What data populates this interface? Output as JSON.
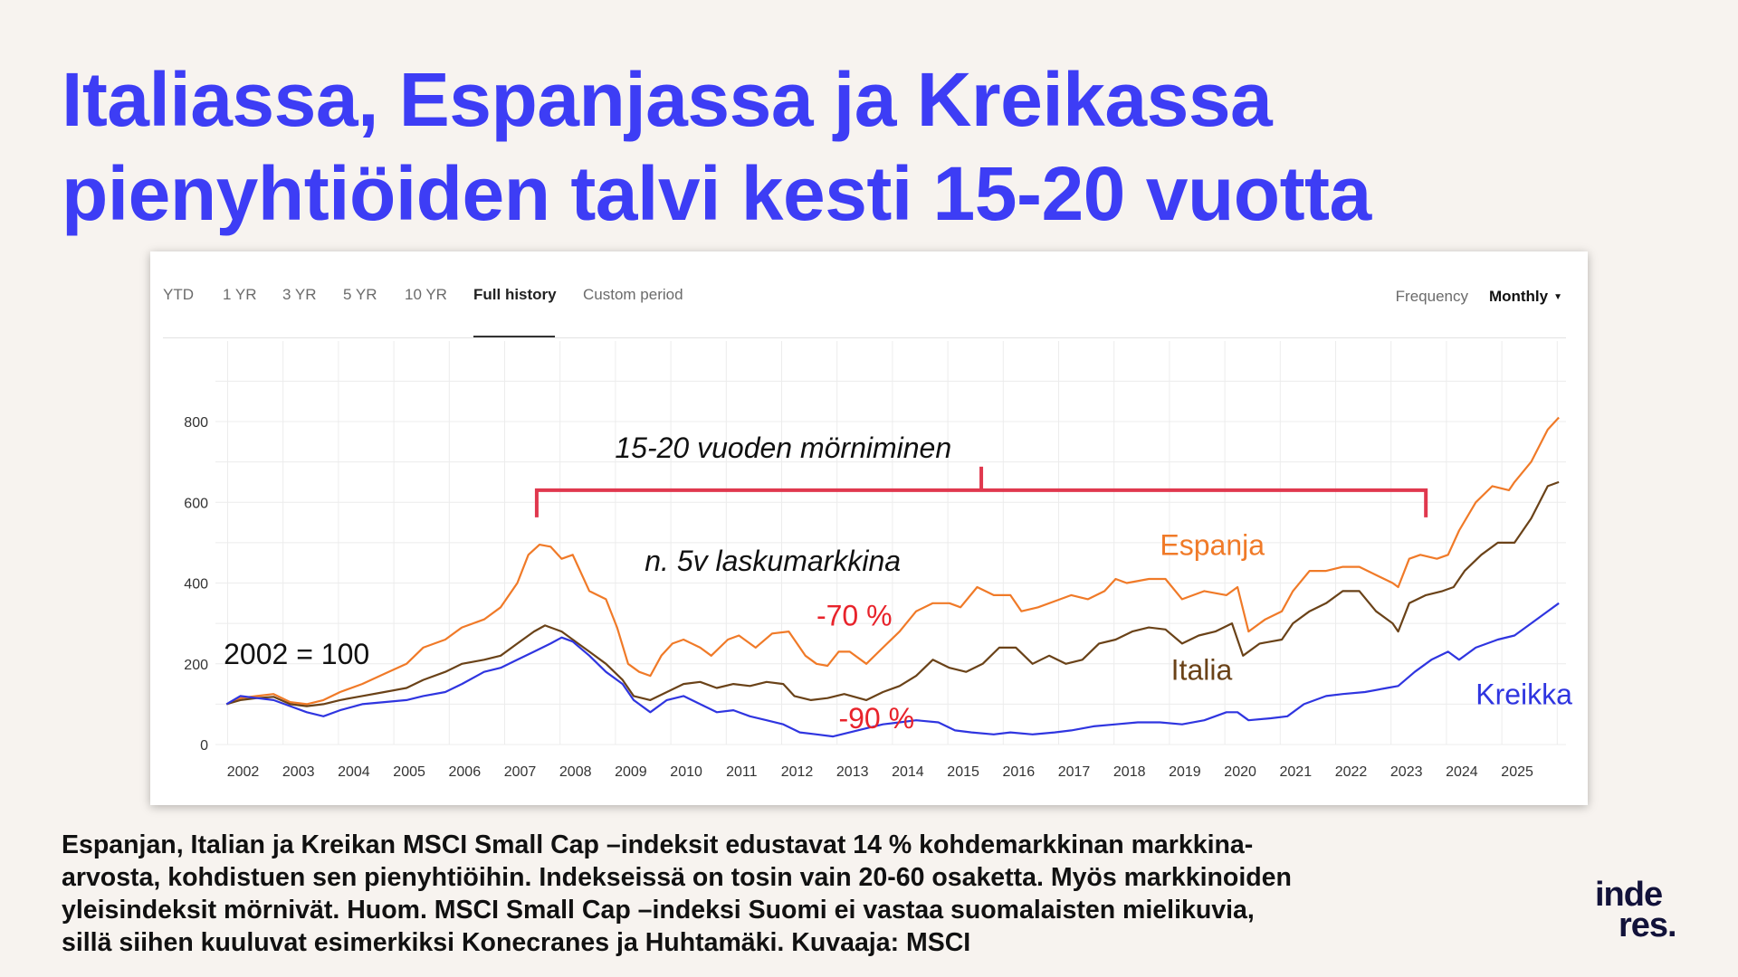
{
  "title": {
    "line1": "Italiassa, Espanjassa ja Kreikassa",
    "line2": "pienyhtiöiden talvi kesti 15-20 vuotta"
  },
  "toolbar": {
    "tabs": [
      {
        "label": "YTD",
        "active": false
      },
      {
        "label": "1 YR",
        "active": false
      },
      {
        "label": "3 YR",
        "active": false
      },
      {
        "label": "5 YR",
        "active": false
      },
      {
        "label": "10 YR",
        "active": false
      },
      {
        "label": "Full history",
        "active": true
      },
      {
        "label": "Custom period",
        "active": false
      }
    ],
    "frequency_label": "Frequency",
    "frequency_value": "Monthly"
  },
  "caption": {
    "line1": "Espanjan, Italian ja Kreikan MSCI Small Cap –indeksit edustavat 14 % kohdemarkkinan markkina-",
    "line2": "arvosta, kohdistuen sen pienyhtiöihin. Indekseissä on tosin vain 20-60 osaketta. Myös markkinoiden",
    "line3": "yleisindeksit mörnivät. Huom. MSCI Small Cap –indeksi Suomi ei vastaa suomalaisten mielikuvia,",
    "line4": "sillä siihen kuuluvat esimerkiksi Konecranes ja Huhtamäki. Kuvaaja: MSCI"
  },
  "logo": {
    "line1": "inde",
    "line2": "res."
  },
  "colors": {
    "headline": "#3d3df5",
    "espanja": "#f07a28",
    "italia": "#6a4218",
    "kreikka": "#2f35e0",
    "bracket": "#e0384e",
    "drawdown_text": "#e8232b"
  },
  "chart_data": {
    "type": "line",
    "x_ticks": [
      "2002",
      "2003",
      "2004",
      "2005",
      "2006",
      "2007",
      "2008",
      "2009",
      "2010",
      "2011",
      "2012",
      "2013",
      "2014",
      "2015",
      "2016",
      "2017",
      "2018",
      "2019",
      "2020",
      "2021",
      "2022",
      "2023",
      "2024",
      "2025"
    ],
    "ylim": [
      0,
      900
    ],
    "y_ticks": [
      0,
      200,
      400,
      600,
      800
    ],
    "grid": true,
    "series": [
      {
        "name": "Espanja",
        "color": "#f07a28",
        "points": [
          [
            2001.75,
            100
          ],
          [
            2002.0,
            115
          ],
          [
            2002.3,
            120
          ],
          [
            2002.6,
            125
          ],
          [
            2002.9,
            105
          ],
          [
            2003.2,
            100
          ],
          [
            2003.5,
            110
          ],
          [
            2003.8,
            130
          ],
          [
            2004.2,
            150
          ],
          [
            2004.6,
            175
          ],
          [
            2005.0,
            200
          ],
          [
            2005.3,
            240
          ],
          [
            2005.7,
            260
          ],
          [
            2006.0,
            290
          ],
          [
            2006.4,
            310
          ],
          [
            2006.7,
            340
          ],
          [
            2007.0,
            400
          ],
          [
            2007.2,
            470
          ],
          [
            2007.4,
            495
          ],
          [
            2007.6,
            490
          ],
          [
            2007.8,
            460
          ],
          [
            2008.0,
            470
          ],
          [
            2008.3,
            380
          ],
          [
            2008.6,
            360
          ],
          [
            2008.8,
            290
          ],
          [
            2009.0,
            200
          ],
          [
            2009.2,
            180
          ],
          [
            2009.4,
            170
          ],
          [
            2009.6,
            220
          ],
          [
            2009.8,
            250
          ],
          [
            2010.0,
            260
          ],
          [
            2010.3,
            240
          ],
          [
            2010.5,
            220
          ],
          [
            2010.8,
            260
          ],
          [
            2011.0,
            270
          ],
          [
            2011.3,
            240
          ],
          [
            2011.6,
            275
          ],
          [
            2011.9,
            280
          ],
          [
            2012.2,
            220
          ],
          [
            2012.4,
            200
          ],
          [
            2012.6,
            195
          ],
          [
            2012.8,
            230
          ],
          [
            2013.0,
            230
          ],
          [
            2013.3,
            200
          ],
          [
            2013.6,
            240
          ],
          [
            2013.9,
            280
          ],
          [
            2014.2,
            330
          ],
          [
            2014.5,
            350
          ],
          [
            2014.8,
            350
          ],
          [
            2015.0,
            340
          ],
          [
            2015.3,
            390
          ],
          [
            2015.6,
            370
          ],
          [
            2015.9,
            370
          ],
          [
            2016.1,
            330
          ],
          [
            2016.4,
            340
          ],
          [
            2016.7,
            355
          ],
          [
            2017.0,
            370
          ],
          [
            2017.3,
            360
          ],
          [
            2017.6,
            380
          ],
          [
            2017.8,
            410
          ],
          [
            2018.0,
            400
          ],
          [
            2018.4,
            410
          ],
          [
            2018.7,
            410
          ],
          [
            2019.0,
            360
          ],
          [
            2019.4,
            380
          ],
          [
            2019.8,
            370
          ],
          [
            2020.0,
            390
          ],
          [
            2020.2,
            280
          ],
          [
            2020.5,
            310
          ],
          [
            2020.8,
            330
          ],
          [
            2021.0,
            380
          ],
          [
            2021.3,
            430
          ],
          [
            2021.6,
            430
          ],
          [
            2021.9,
            440
          ],
          [
            2022.2,
            440
          ],
          [
            2022.5,
            420
          ],
          [
            2022.8,
            400
          ],
          [
            2022.9,
            390
          ],
          [
            2023.1,
            460
          ],
          [
            2023.3,
            470
          ],
          [
            2023.6,
            460
          ],
          [
            2023.8,
            470
          ],
          [
            2024.0,
            530
          ],
          [
            2024.3,
            600
          ],
          [
            2024.6,
            640
          ],
          [
            2024.9,
            630
          ],
          [
            2025.0,
            650
          ],
          [
            2025.3,
            700
          ],
          [
            2025.6,
            780
          ],
          [
            2025.8,
            810
          ]
        ]
      },
      {
        "name": "Italia",
        "color": "#6a4218",
        "points": [
          [
            2001.75,
            100
          ],
          [
            2002.0,
            110
          ],
          [
            2002.3,
            115
          ],
          [
            2002.6,
            118
          ],
          [
            2002.9,
            100
          ],
          [
            2003.2,
            95
          ],
          [
            2003.5,
            100
          ],
          [
            2003.8,
            110
          ],
          [
            2004.2,
            120
          ],
          [
            2004.6,
            130
          ],
          [
            2005.0,
            140
          ],
          [
            2005.3,
            160
          ],
          [
            2005.7,
            180
          ],
          [
            2006.0,
            200
          ],
          [
            2006.4,
            210
          ],
          [
            2006.7,
            220
          ],
          [
            2007.0,
            250
          ],
          [
            2007.3,
            280
          ],
          [
            2007.5,
            295
          ],
          [
            2007.8,
            280
          ],
          [
            2008.0,
            260
          ],
          [
            2008.3,
            230
          ],
          [
            2008.6,
            200
          ],
          [
            2008.9,
            160
          ],
          [
            2009.1,
            120
          ],
          [
            2009.4,
            110
          ],
          [
            2009.7,
            130
          ],
          [
            2010.0,
            150
          ],
          [
            2010.3,
            155
          ],
          [
            2010.6,
            140
          ],
          [
            2010.9,
            150
          ],
          [
            2011.2,
            145
          ],
          [
            2011.5,
            155
          ],
          [
            2011.8,
            150
          ],
          [
            2012.0,
            120
          ],
          [
            2012.3,
            110
          ],
          [
            2012.6,
            115
          ],
          [
            2012.9,
            125
          ],
          [
            2013.3,
            110
          ],
          [
            2013.6,
            130
          ],
          [
            2013.9,
            145
          ],
          [
            2014.2,
            170
          ],
          [
            2014.5,
            210
          ],
          [
            2014.8,
            190
          ],
          [
            2015.1,
            180
          ],
          [
            2015.4,
            200
          ],
          [
            2015.7,
            240
          ],
          [
            2016.0,
            240
          ],
          [
            2016.3,
            200
          ],
          [
            2016.6,
            220
          ],
          [
            2016.9,
            200
          ],
          [
            2017.2,
            210
          ],
          [
            2017.5,
            250
          ],
          [
            2017.8,
            260
          ],
          [
            2018.1,
            280
          ],
          [
            2018.4,
            290
          ],
          [
            2018.7,
            285
          ],
          [
            2019.0,
            250
          ],
          [
            2019.3,
            270
          ],
          [
            2019.6,
            280
          ],
          [
            2019.9,
            300
          ],
          [
            2020.1,
            220
          ],
          [
            2020.4,
            250
          ],
          [
            2020.8,
            260
          ],
          [
            2021.0,
            300
          ],
          [
            2021.3,
            330
          ],
          [
            2021.6,
            350
          ],
          [
            2021.9,
            380
          ],
          [
            2022.2,
            380
          ],
          [
            2022.5,
            330
          ],
          [
            2022.8,
            300
          ],
          [
            2022.9,
            280
          ],
          [
            2023.1,
            350
          ],
          [
            2023.4,
            370
          ],
          [
            2023.7,
            380
          ],
          [
            2023.9,
            390
          ],
          [
            2024.1,
            430
          ],
          [
            2024.4,
            470
          ],
          [
            2024.7,
            500
          ],
          [
            2025.0,
            500
          ],
          [
            2025.3,
            560
          ],
          [
            2025.6,
            640
          ],
          [
            2025.8,
            650
          ]
        ]
      },
      {
        "name": "Kreikka",
        "color": "#2f35e0",
        "points": [
          [
            2001.75,
            100
          ],
          [
            2002.0,
            120
          ],
          [
            2002.3,
            115
          ],
          [
            2002.6,
            110
          ],
          [
            2002.9,
            95
          ],
          [
            2003.2,
            80
          ],
          [
            2003.5,
            70
          ],
          [
            2003.8,
            85
          ],
          [
            2004.2,
            100
          ],
          [
            2004.6,
            105
          ],
          [
            2005.0,
            110
          ],
          [
            2005.3,
            120
          ],
          [
            2005.7,
            130
          ],
          [
            2006.0,
            150
          ],
          [
            2006.4,
            180
          ],
          [
            2006.7,
            190
          ],
          [
            2007.0,
            210
          ],
          [
            2007.3,
            230
          ],
          [
            2007.6,
            250
          ],
          [
            2007.8,
            265
          ],
          [
            2008.0,
            255
          ],
          [
            2008.3,
            220
          ],
          [
            2008.6,
            180
          ],
          [
            2008.9,
            150
          ],
          [
            2009.1,
            110
          ],
          [
            2009.4,
            80
          ],
          [
            2009.7,
            110
          ],
          [
            2010.0,
            120
          ],
          [
            2010.3,
            100
          ],
          [
            2010.6,
            80
          ],
          [
            2010.9,
            85
          ],
          [
            2011.2,
            70
          ],
          [
            2011.5,
            60
          ],
          [
            2011.8,
            50
          ],
          [
            2012.1,
            30
          ],
          [
            2012.4,
            25
          ],
          [
            2012.7,
            20
          ],
          [
            2013.0,
            30
          ],
          [
            2013.3,
            40
          ],
          [
            2013.6,
            50
          ],
          [
            2013.9,
            55
          ],
          [
            2014.2,
            60
          ],
          [
            2014.6,
            55
          ],
          [
            2014.9,
            35
          ],
          [
            2015.2,
            30
          ],
          [
            2015.6,
            25
          ],
          [
            2015.9,
            30
          ],
          [
            2016.3,
            25
          ],
          [
            2016.7,
            30
          ],
          [
            2017.0,
            35
          ],
          [
            2017.4,
            45
          ],
          [
            2017.8,
            50
          ],
          [
            2018.2,
            55
          ],
          [
            2018.6,
            55
          ],
          [
            2019.0,
            50
          ],
          [
            2019.4,
            60
          ],
          [
            2019.8,
            80
          ],
          [
            2020.0,
            80
          ],
          [
            2020.2,
            60
          ],
          [
            2020.6,
            65
          ],
          [
            2020.9,
            70
          ],
          [
            2021.2,
            100
          ],
          [
            2021.6,
            120
          ],
          [
            2021.9,
            125
          ],
          [
            2022.3,
            130
          ],
          [
            2022.7,
            140
          ],
          [
            2022.9,
            145
          ],
          [
            2023.2,
            180
          ],
          [
            2023.5,
            210
          ],
          [
            2023.8,
            230
          ],
          [
            2024.0,
            210
          ],
          [
            2024.3,
            240
          ],
          [
            2024.7,
            260
          ],
          [
            2025.0,
            270
          ],
          [
            2025.3,
            300
          ],
          [
            2025.6,
            330
          ],
          [
            2025.8,
            350
          ]
        ]
      }
    ],
    "annotations": [
      {
        "text": "15-20 vuoden mörniminen",
        "x": 2011.8,
        "y": 710
      },
      {
        "text": "n. 5v laskumarkkina",
        "x": 2009.3,
        "y": 430
      },
      {
        "text": "-70 %",
        "x": 2012.4,
        "y": 295
      },
      {
        "text": "-90 %",
        "x": 2012.8,
        "y": 40
      },
      {
        "text": "2002 = 100",
        "x": 2001.7,
        "y": 200
      },
      {
        "text": "Espanja",
        "x": 2018.6,
        "y": 470
      },
      {
        "text": "Italia",
        "x": 2018.8,
        "y": 160
      },
      {
        "text": "Kreikka",
        "x": 2024.3,
        "y": 100
      }
    ],
    "bracket": {
      "x_start": 2007.35,
      "x_end": 2023.4,
      "y": 630
    }
  }
}
